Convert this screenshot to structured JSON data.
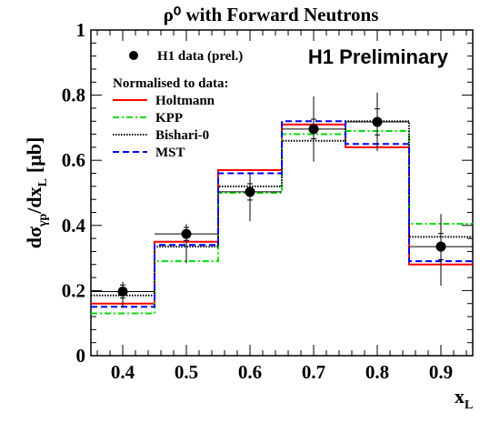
{
  "chart_data": {
    "type": "step",
    "title": "ρ⁰ with Forward Neutrons",
    "preliminary": "H1 Preliminary",
    "xlabel": "x",
    "xlabel_sub": "L",
    "ylabel": "dσ",
    "ylabel_sub1": "γp",
    "ylabel_mid": "/dx",
    "ylabel_sub2": "L",
    "ylabel_unit": "[μb]",
    "xlim": [
      0.35,
      0.95
    ],
    "ylim": [
      0,
      1
    ],
    "xticks": [
      "0.4",
      "0.5",
      "0.6",
      "0.7",
      "0.8",
      "0.9"
    ],
    "yticks": [
      "0",
      "0.2",
      "0.4",
      "0.6",
      "0.8",
      "1"
    ],
    "bin_edges": [
      0.35,
      0.45,
      0.55,
      0.65,
      0.75,
      0.85,
      0.95
    ],
    "data": {
      "label": "H1 data (prel.)",
      "x": [
        0.4,
        0.5,
        0.6,
        0.7,
        0.8,
        0.9
      ],
      "y": [
        0.197,
        0.374,
        0.503,
        0.696,
        0.718,
        0.335
      ],
      "err_lo": [
        0.05,
        0.09,
        0.09,
        0.1,
        0.09,
        0.12
      ],
      "err_hi": [
        0.03,
        0.03,
        0.06,
        0.1,
        0.09,
        0.1
      ],
      "err_inner": [
        0.02,
        0.02,
        0.025,
        0.03,
        0.04,
        0.04
      ]
    },
    "legend_header": "Normalised to data:",
    "series": [
      {
        "name": "Holtmann",
        "values": [
          0.16,
          0.35,
          0.57,
          0.71,
          0.64,
          0.28
        ],
        "color": "#ff0000",
        "dash": "solid"
      },
      {
        "name": "KPP",
        "values": [
          0.13,
          0.29,
          0.5,
          0.68,
          0.69,
          0.405
        ],
        "color": "#00dd00",
        "dash": "dashdot"
      },
      {
        "name": "Bishari-0",
        "values": [
          0.185,
          0.335,
          0.52,
          0.66,
          0.72,
          0.365
        ],
        "color": "#000000",
        "dash": "dotted"
      },
      {
        "name": "MST",
        "values": [
          0.15,
          0.34,
          0.56,
          0.72,
          0.65,
          0.29
        ],
        "color": "#0000ff",
        "dash": "dashed"
      }
    ]
  }
}
